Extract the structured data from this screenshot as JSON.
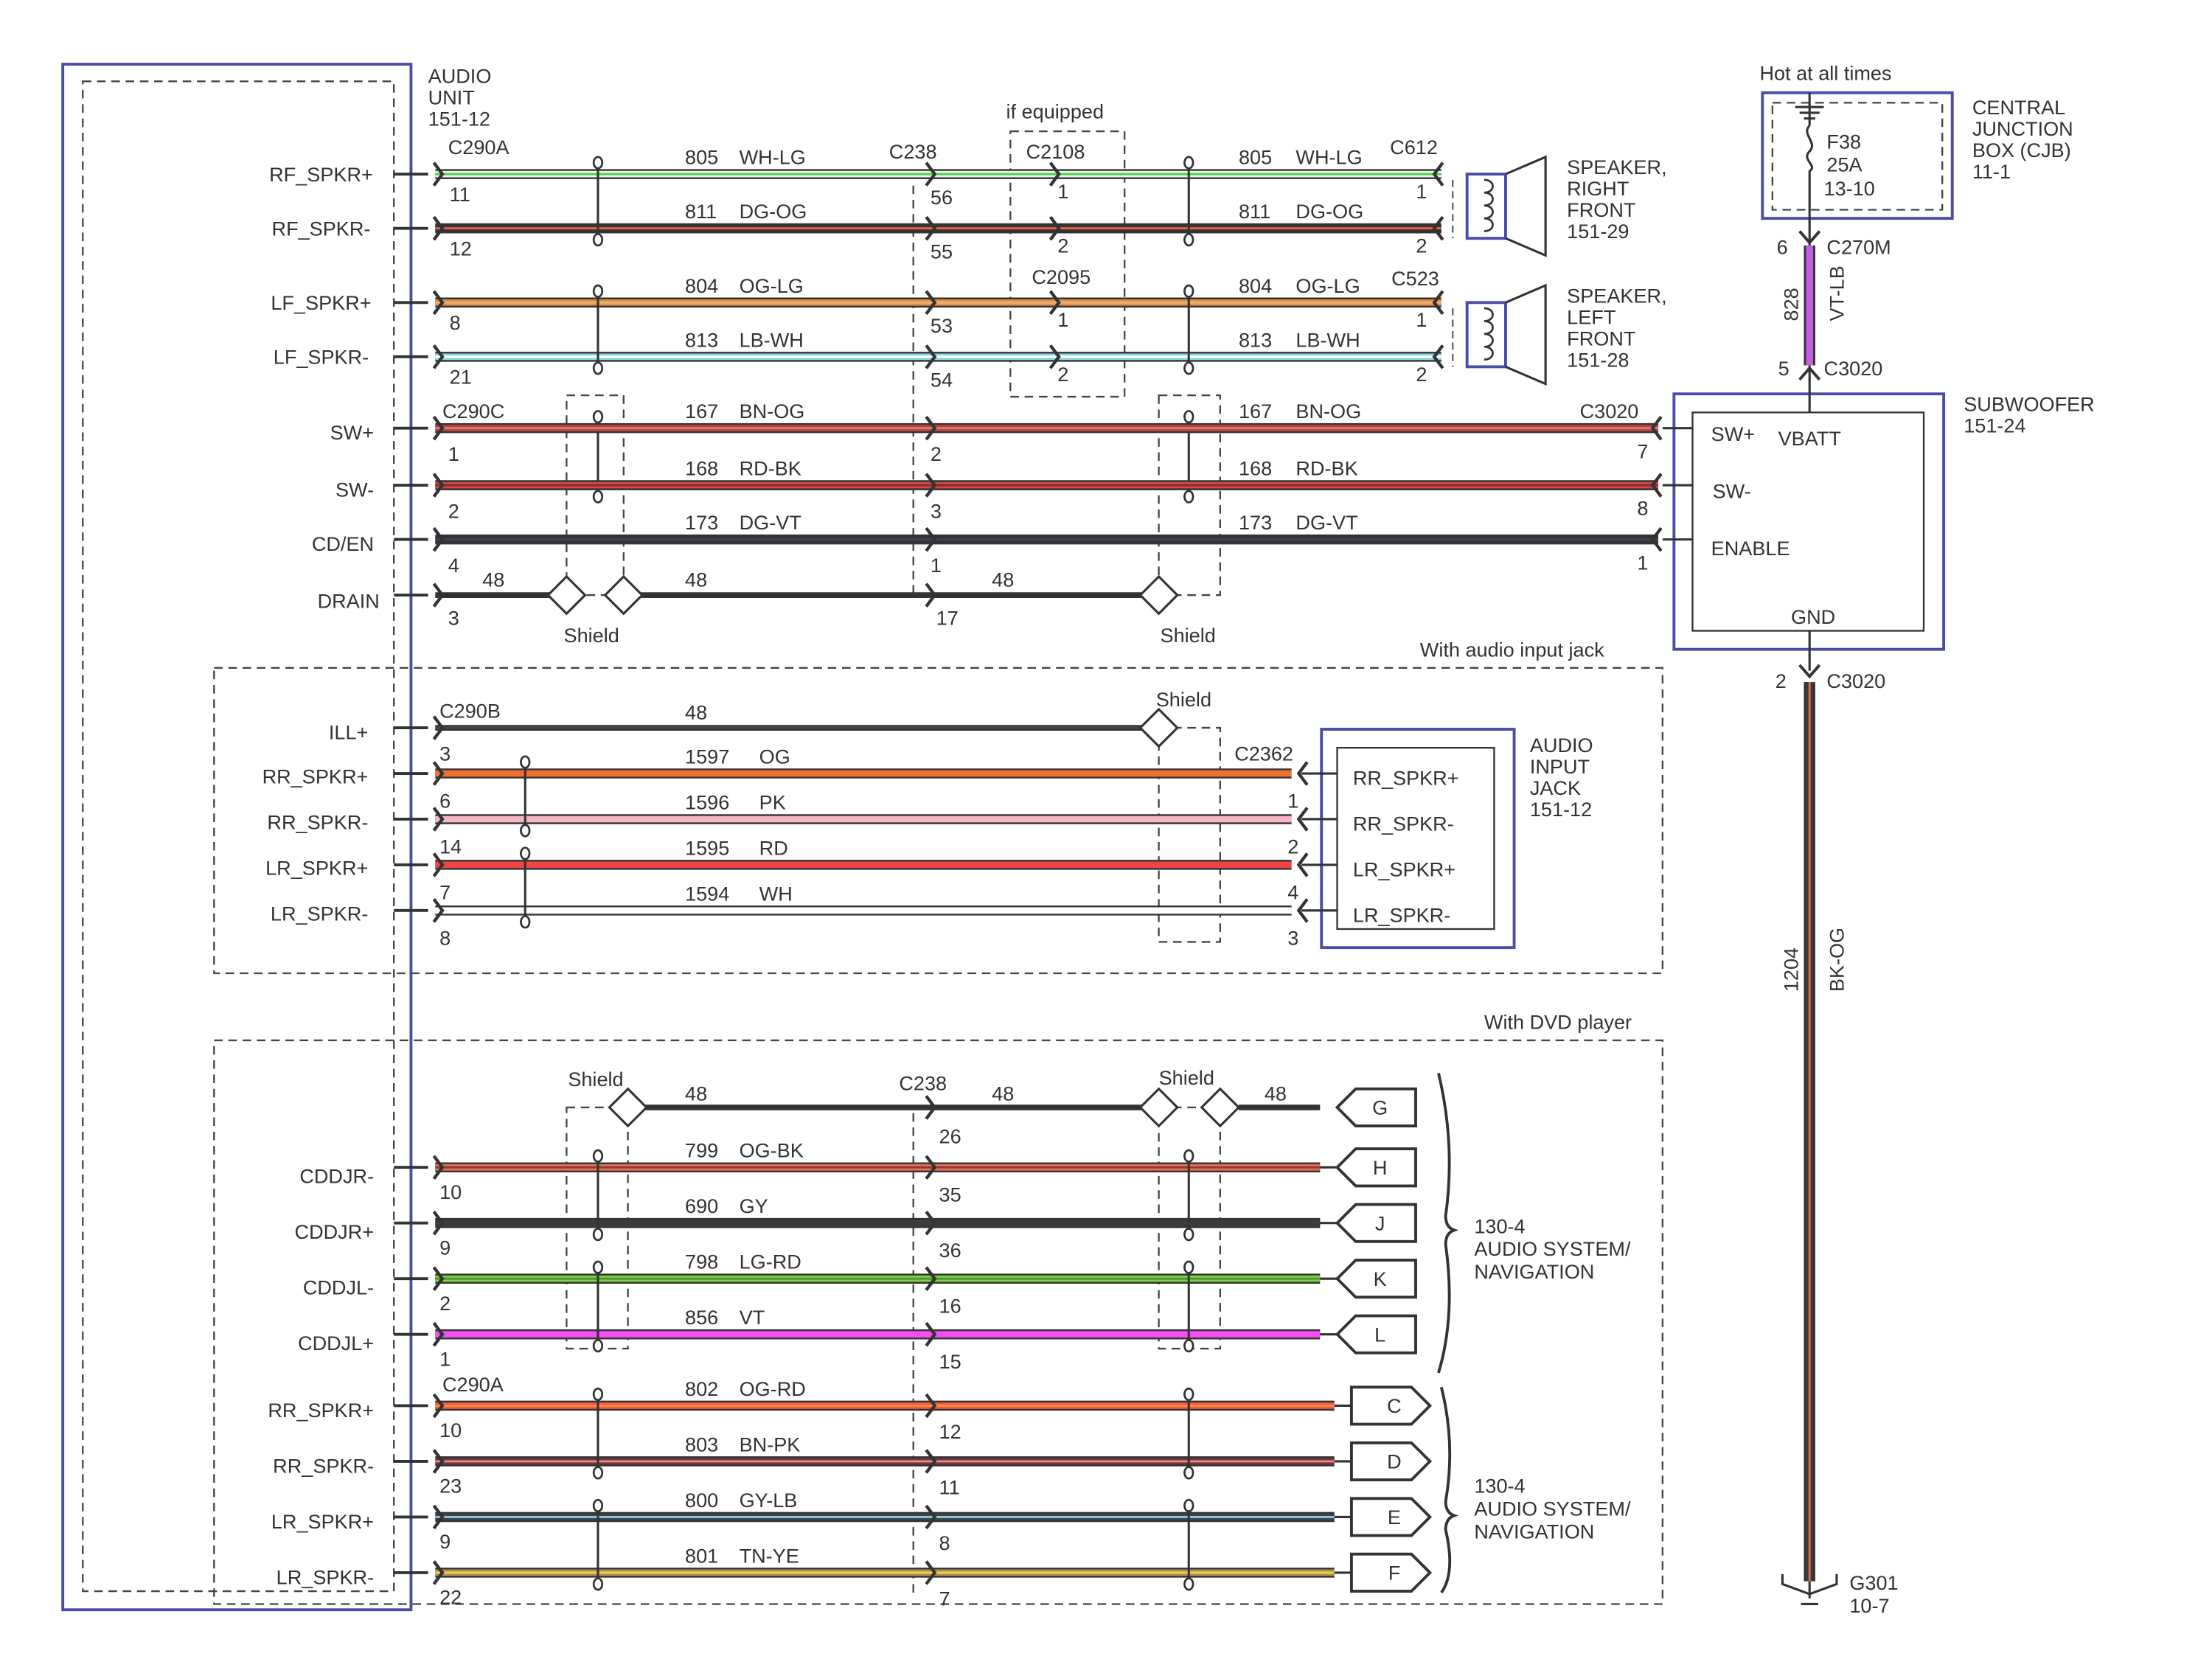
{
  "audio_unit": {
    "lines": [
      "AUDIO",
      "UNIT",
      "151-12"
    ]
  },
  "connectors": {
    "c290a": "C290A",
    "c238": "C238",
    "c2108": "C2108",
    "c2095": "C2095",
    "c612": "C612",
    "c523": "C523",
    "c290c": "C290C",
    "c3020": "C3020",
    "c290b": "C290B",
    "c2362": "C2362",
    "c270m": "C270M"
  },
  "if_equipped": "if equipped",
  "shield": "Shield",
  "drain_circuit": "48",
  "speaker_rf": [
    "SPEAKER,",
    "RIGHT",
    "FRONT",
    "151-29"
  ],
  "speaker_lf": [
    "SPEAKER,",
    "LEFT",
    "FRONT",
    "151-28"
  ],
  "speaker_wires": [
    {
      "signal": "RF_SPKR+",
      "pins": [
        "11",
        "56",
        "1",
        "1"
      ],
      "circuit": "805",
      "color_code": "WH-LG",
      "colors": {
        "main": "#eaf8ea",
        "stripe": "#4fd04f"
      }
    },
    {
      "signal": "RF_SPKR-",
      "pins": [
        "12",
        "55",
        "2",
        "2"
      ],
      "circuit": "811",
      "color_code": "DG-OG",
      "colors": {
        "main": "#3d3030",
        "stripe": "#e06a50"
      }
    },
    {
      "signal": "LF_SPKR+",
      "pins": [
        "8",
        "53",
        "1",
        "1"
      ],
      "circuit": "804",
      "color_code": "OG-LG",
      "colors": {
        "main": "#e0904a",
        "stripe": "#f0b070"
      }
    },
    {
      "signal": "LF_SPKR-",
      "pins": [
        "21",
        "54",
        "2",
        "2"
      ],
      "circuit": "813",
      "color_code": "LB-WH",
      "colors": {
        "main": "#8fd6e0",
        "stripe": "#ffffff"
      }
    }
  ],
  "sub_wires": [
    {
      "signal": "SW+",
      "pins": [
        "1",
        "2",
        "7"
      ],
      "circuit": "167",
      "color_code": "BN-OG",
      "colors": {
        "main": "#b44444",
        "stripe": "#e5786a"
      }
    },
    {
      "signal": "SW-",
      "pins": [
        "2",
        "3",
        "8"
      ],
      "circuit": "168",
      "color_code": "RD-BK",
      "colors": {
        "main": "#cc4a4a",
        "stripe": "#8a2a2a"
      }
    },
    {
      "signal": "CD/EN",
      "pins": [
        "4",
        "1",
        "1"
      ],
      "circuit": "173",
      "color_code": "DG-VT",
      "colors": {
        "main": "#333338",
        "stripe": "#4a3d58"
      }
    }
  ],
  "drain": {
    "signal": "DRAIN",
    "pins": [
      "3",
      "17"
    ]
  },
  "subwoofer": {
    "title": [
      "SUBWOOFER",
      "151-24"
    ],
    "sw_plus": "SW+",
    "vbatt": "VBATT",
    "sw_minus": "SW-",
    "enable": "ENABLE",
    "gnd": "GND",
    "top_pin": "5",
    "bottom_pin": "2"
  },
  "cjb": {
    "hot": "Hot at all times",
    "fuse": "F38",
    "rating": "25A",
    "ref": "13-10",
    "title": [
      "CENTRAL",
      "JUNCTION",
      "BOX (CJB)",
      "11-1"
    ]
  },
  "feed_wire": {
    "pin": "6",
    "circuit": "828",
    "color_code": "VT-LB",
    "color": "#c060e0"
  },
  "ground_wire": {
    "circuit": "1204",
    "color_code": "BK-OG",
    "colors": {
      "main": "#3a3a3a",
      "stripe": "#d87050"
    },
    "ground": "G301",
    "ground_ref": "10-7"
  },
  "audio_input": {
    "title": "With audio input jack",
    "ill": {
      "signal": "ILL+",
      "pin": "3",
      "circuit": "48"
    },
    "jack_title": [
      "AUDIO",
      "INPUT",
      "JACK",
      "151-12"
    ],
    "wires": [
      {
        "signal": "RR_SPKR+",
        "pins": [
          "6",
          "1"
        ],
        "circuit": "1597",
        "color_code": "OG",
        "jack_pin": "RR_SPKR+",
        "colors": {
          "main": "#f07030"
        }
      },
      {
        "signal": "RR_SPKR-",
        "pins": [
          "14",
          "2"
        ],
        "circuit": "1596",
        "color_code": "PK",
        "jack_pin": "RR_SPKR-",
        "colors": {
          "main": "#f6b4c4"
        }
      },
      {
        "signal": "LR_SPKR+",
        "pins": [
          "7",
          "4"
        ],
        "circuit": "1595",
        "color_code": "RD",
        "jack_pin": "LR_SPKR+",
        "colors": {
          "main": "#f04444"
        }
      },
      {
        "signal": "LR_SPKR-",
        "pins": [
          "8",
          "3"
        ],
        "circuit": "1594",
        "color_code": "WH",
        "jack_pin": "LR_SPKR-",
        "colors": {
          "main": "#ffffff"
        }
      }
    ]
  },
  "dvd": {
    "title": "With DVD player",
    "drain": {
      "pin": "26",
      "circuit": "48",
      "flag": "G"
    },
    "cd_wires": [
      {
        "signal": "CDDJR-",
        "pins": [
          "10",
          "35"
        ],
        "circuit": "799",
        "color_code": "OG-BK",
        "flag": "H",
        "colors": {
          "main": "#e07258",
          "stripe": "#903830"
        }
      },
      {
        "signal": "CDDJR+",
        "pins": [
          "9",
          "36"
        ],
        "circuit": "690",
        "color_code": "GY",
        "flag": "J",
        "colors": {
          "main": "#3c3c3c"
        }
      },
      {
        "signal": "CDDJL-",
        "pins": [
          "2",
          "16"
        ],
        "circuit": "798",
        "color_code": "LG-RD",
        "flag": "K",
        "colors": {
          "main": "#80d048",
          "stripe": "#4a9a30"
        }
      },
      {
        "signal": "CDDJL+",
        "pins": [
          "1",
          "15"
        ],
        "circuit": "856",
        "color_code": "VT",
        "flag": "L",
        "colors": {
          "main": "#f24ef2"
        }
      }
    ],
    "spkr_wires": [
      {
        "signal": "RR_SPKR+",
        "pins": [
          "10",
          "12"
        ],
        "circuit": "802",
        "color_code": "OG-RD",
        "flag": "C",
        "colors": {
          "main": "#f45a34",
          "stripe": "#ff8a50"
        }
      },
      {
        "signal": "RR_SPKR-",
        "pins": [
          "23",
          "11"
        ],
        "circuit": "803",
        "color_code": "BN-PK",
        "flag": "D",
        "colors": {
          "main": "#6e3838",
          "stripe": "#e88a90"
        }
      },
      {
        "signal": "LR_SPKR+",
        "pins": [
          "9",
          "8"
        ],
        "circuit": "800",
        "color_code": "GY-LB",
        "flag": "E",
        "colors": {
          "main": "#3e4448",
          "stripe": "#8ac8e0"
        }
      },
      {
        "signal": "LR_SPKR-",
        "pins": [
          "22",
          "7"
        ],
        "circuit": "801",
        "color_code": "TN-YE",
        "flag": "F",
        "colors": {
          "main": "#b09050",
          "stripe": "#f0d050"
        }
      }
    ],
    "nav_ref": [
      "130-4",
      "AUDIO SYSTEM/",
      "NAVIGATION"
    ]
  }
}
